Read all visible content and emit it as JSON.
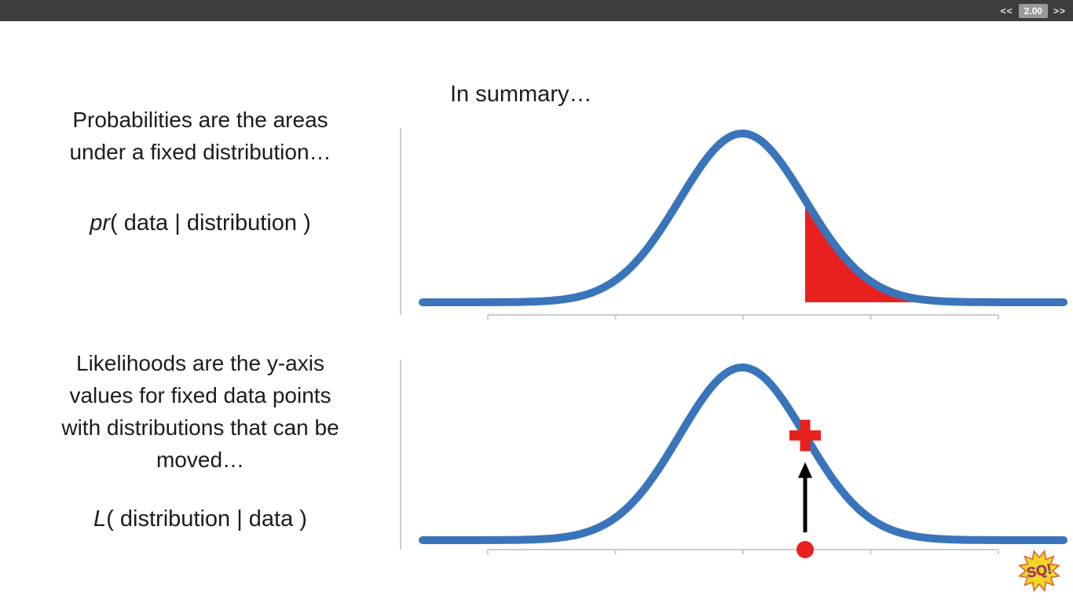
{
  "player_bar": {
    "rewind_label": "<<",
    "speed_value": "2.00",
    "forward_label": ">>"
  },
  "slide": {
    "heading": "In summary…",
    "probability_caption": "Probabilities are the areas\nunder a fixed distribution…",
    "probability_notation_prefix": "pr",
    "probability_notation_rest": "( data | distribution )",
    "likelihood_caption": "Likelihoods are the y-axis\nvalues for fixed data points\nwith distributions that can be\nmoved…",
    "likelihood_notation_prefix": "L",
    "likelihood_notation_rest": "( distribution | data )",
    "logo_text": "SQ!"
  },
  "colors": {
    "blue_curve": "#3a75bb",
    "red": "#e8201e",
    "axis": "#cccccc",
    "arrow_black": "#000000",
    "bar_bg": "#3d3d3d",
    "speed_bg": "#9a9a9a",
    "logo_yellow": "#f5d327",
    "logo_edge": "#d8601f"
  },
  "chart_data": [
    {
      "type": "area",
      "title": "",
      "description": "Normal (bell) distribution curve; red shaded area under the right tail represents a probability pr(data | distribution)",
      "curve": {
        "distribution": "normal",
        "mean": 0,
        "sd": 1,
        "x_range": [
          -5.1,
          5.1
        ]
      },
      "shaded_region": {
        "from_z": 1.0,
        "to_z": 3.5,
        "meaning": "probability = area under fixed distribution"
      },
      "axes": {
        "x_label": "",
        "y_label": "",
        "x_tick_count": 5,
        "tick_labels_visible": false,
        "grid": false
      }
    },
    {
      "type": "line",
      "title": "",
      "description": "Normal (bell) distribution curve; red plus marks the y-axis (likelihood) value at a fixed data point shown as a red dot on the x-axis with a black arrow pointing up to the curve",
      "curve": {
        "distribution": "normal",
        "mean": 0,
        "sd": 1,
        "x_range": [
          -5.1,
          5.1
        ]
      },
      "marker": {
        "z": 1.0,
        "symbol": "plus",
        "meaning": "likelihood L(distribution | data)"
      },
      "data_point": {
        "z": 1.0,
        "on_x_axis": true,
        "symbol": "dot",
        "arrow": "up"
      },
      "axes": {
        "x_label": "",
        "y_label": "",
        "x_tick_count": 5,
        "tick_labels_visible": false,
        "grid": false
      }
    }
  ]
}
